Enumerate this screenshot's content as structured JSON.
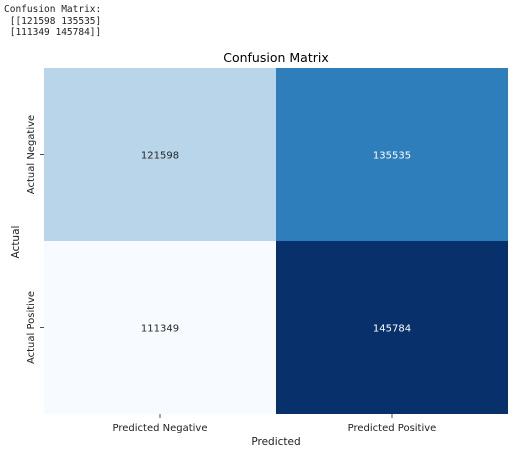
{
  "console": {
    "lines": [
      "Confusion Matrix:",
      " [[121598 135535]",
      " [111349 145784]]"
    ]
  },
  "chart_data": {
    "type": "heatmap",
    "title": "Confusion Matrix",
    "xlabel": "Predicted",
    "ylabel": "Actual",
    "x_categories": [
      "Predicted Negative",
      "Predicted Positive"
    ],
    "y_categories": [
      "Actual Negative",
      "Actual Positive"
    ],
    "values": [
      [
        121598,
        135535
      ],
      [
        111349,
        145784
      ]
    ],
    "colormap": "Blues",
    "colorbar": false,
    "cell_colors": [
      [
        "#b9d5ea",
        "#2e7ebc"
      ],
      [
        "#f7fbff",
        "#08306b"
      ]
    ],
    "text_colors": [
      [
        "#262626",
        "#ffffff"
      ],
      [
        "#262626",
        "#ffffff"
      ]
    ]
  }
}
